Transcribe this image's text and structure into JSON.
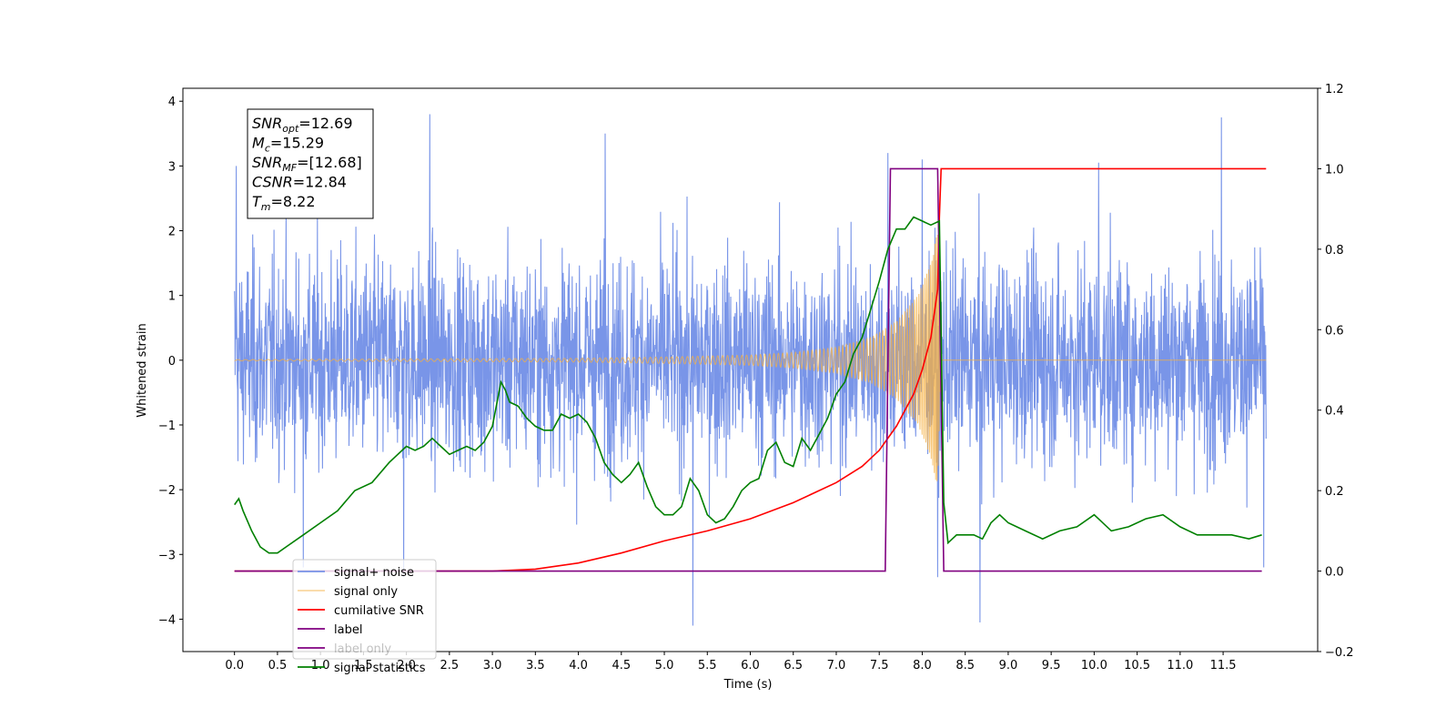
{
  "chart_data": {
    "type": "line",
    "xlabel": "Time (s)",
    "ylabel": "Whitened strain",
    "xlim": [
      -0.6,
      12.6
    ],
    "ylim": [
      -4.5,
      4.2
    ],
    "y2lim": [
      -0.2,
      1.2
    ],
    "x_ticks": [
      "0.0",
      "0.5",
      "1.0",
      "1.5",
      "2.0",
      "2.5",
      "3.0",
      "3.5",
      "4.0",
      "4.5",
      "5.0",
      "5.5",
      "6.0",
      "6.5",
      "7.0",
      "7.5",
      "8.0",
      "8.5",
      "9.0",
      "9.5",
      "10.0",
      "10.5",
      "11.0",
      "11.5"
    ],
    "y_ticks": [
      "4",
      "3",
      "2",
      "1",
      "0",
      "−1",
      "−2",
      "−3",
      "−4"
    ],
    "y2_ticks": [
      "1.2",
      "1.0",
      "0.8",
      "0.6",
      "0.4",
      "0.2",
      "0.0",
      "−0.2"
    ],
    "legend_position": "lower-left",
    "stats_box": [
      {
        "name": "SNR",
        "sub": "opt",
        "value": "=12.69"
      },
      {
        "name": "M",
        "sub": "c",
        "value": "=15.29"
      },
      {
        "name": "SNR",
        "sub": "MF",
        "value": "=[12.68]"
      },
      {
        "name": "CSNR",
        "sub": "",
        "value": "=12.84"
      },
      {
        "name": "T",
        "sub": "m",
        "value": "=8.22"
      }
    ],
    "series": [
      {
        "name": "signal+ noise",
        "color": "#6a8ae6",
        "axis": "left",
        "description_range": [
          -1.7,
          1.8
        ],
        "peaks": [
          [
            0.02,
            3.0
          ],
          [
            2.27,
            3.8
          ],
          [
            4.31,
            3.5
          ],
          [
            7.6,
            3.2
          ],
          [
            8.0,
            3.1
          ],
          [
            10.05,
            3.05
          ],
          [
            11.48,
            3.75
          ],
          [
            5.33,
            -4.1
          ],
          [
            8.67,
            -4.05
          ],
          [
            8.18,
            -3.35
          ],
          [
            0.8,
            -3.2
          ],
          [
            1.97,
            -3.35
          ],
          [
            11.97,
            -3.2
          ]
        ]
      },
      {
        "name": "signal only",
        "color": "#f5b041",
        "axis": "left",
        "envelope": [
          [
            0.0,
            0.01
          ],
          [
            4.0,
            0.03
          ],
          [
            5.0,
            0.05
          ],
          [
            6.0,
            0.08
          ],
          [
            6.5,
            0.12
          ],
          [
            7.0,
            0.2
          ],
          [
            7.4,
            0.35
          ],
          [
            7.7,
            0.6
          ],
          [
            7.95,
            1.0
          ],
          [
            8.1,
            1.5
          ],
          [
            8.18,
            2.0
          ],
          [
            8.22,
            0.0
          ],
          [
            12.0,
            0.0
          ]
        ]
      },
      {
        "name": "cumilative SNR",
        "color": "#ff0000",
        "axis": "right",
        "x": [
          0.0,
          3.0,
          3.5,
          4.0,
          4.5,
          5.0,
          5.5,
          6.0,
          6.5,
          7.0,
          7.3,
          7.5,
          7.7,
          7.9,
          8.0,
          8.1,
          8.18,
          8.2,
          8.22,
          12.0
        ],
        "y": [
          0.0,
          0.0,
          0.005,
          0.02,
          0.045,
          0.075,
          0.1,
          0.13,
          0.17,
          0.22,
          0.26,
          0.3,
          0.36,
          0.44,
          0.5,
          0.58,
          0.7,
          0.88,
          1.0,
          1.0
        ]
      },
      {
        "name": "label",
        "color": "#800080",
        "axis": "right",
        "x": [
          0.0,
          7.57,
          7.63,
          8.18,
          8.25,
          11.95
        ],
        "y": [
          0.0,
          0.0,
          1.0,
          1.0,
          0.0,
          0.0
        ]
      },
      {
        "name": "label only",
        "color": "#800080",
        "axis": "right",
        "hidden": true
      },
      {
        "name": "signal statistics",
        "color": "#008000",
        "axis": "right",
        "x": [
          0.0,
          0.05,
          0.1,
          0.2,
          0.3,
          0.4,
          0.5,
          0.6,
          0.8,
          1.0,
          1.2,
          1.4,
          1.6,
          1.8,
          2.0,
          2.1,
          2.2,
          2.3,
          2.4,
          2.5,
          2.6,
          2.7,
          2.8,
          2.9,
          3.0,
          3.1,
          3.15,
          3.2,
          3.3,
          3.4,
          3.5,
          3.6,
          3.7,
          3.8,
          3.9,
          4.0,
          4.1,
          4.2,
          4.3,
          4.4,
          4.5,
          4.6,
          4.7,
          4.8,
          4.9,
          5.0,
          5.1,
          5.2,
          5.3,
          5.4,
          5.5,
          5.6,
          5.7,
          5.8,
          5.9,
          6.0,
          6.1,
          6.2,
          6.3,
          6.4,
          6.5,
          6.6,
          6.7,
          6.8,
          6.9,
          7.0,
          7.1,
          7.2,
          7.3,
          7.4,
          7.5,
          7.6,
          7.7,
          7.8,
          7.9,
          8.0,
          8.1,
          8.2,
          8.25,
          8.3,
          8.4,
          8.5,
          8.6,
          8.7,
          8.8,
          8.9,
          9.0,
          9.2,
          9.4,
          9.6,
          9.8,
          10.0,
          10.2,
          10.4,
          10.6,
          10.8,
          11.0,
          11.2,
          11.4,
          11.6,
          11.8,
          11.95
        ],
        "y": [
          0.165,
          0.18,
          0.15,
          0.1,
          0.06,
          0.045,
          0.045,
          0.06,
          0.09,
          0.12,
          0.15,
          0.2,
          0.22,
          0.27,
          0.31,
          0.3,
          0.31,
          0.33,
          0.31,
          0.29,
          0.3,
          0.31,
          0.3,
          0.32,
          0.36,
          0.47,
          0.45,
          0.42,
          0.41,
          0.38,
          0.36,
          0.35,
          0.35,
          0.39,
          0.38,
          0.39,
          0.37,
          0.33,
          0.27,
          0.24,
          0.22,
          0.24,
          0.27,
          0.21,
          0.16,
          0.14,
          0.14,
          0.16,
          0.23,
          0.2,
          0.14,
          0.12,
          0.13,
          0.16,
          0.2,
          0.22,
          0.23,
          0.3,
          0.32,
          0.27,
          0.26,
          0.33,
          0.3,
          0.34,
          0.38,
          0.44,
          0.47,
          0.54,
          0.58,
          0.65,
          0.72,
          0.8,
          0.85,
          0.85,
          0.88,
          0.87,
          0.86,
          0.87,
          0.17,
          0.07,
          0.09,
          0.09,
          0.09,
          0.08,
          0.12,
          0.14,
          0.12,
          0.1,
          0.08,
          0.1,
          0.11,
          0.14,
          0.1,
          0.11,
          0.13,
          0.14,
          0.11,
          0.09,
          0.09,
          0.09,
          0.08,
          0.09
        ]
      }
    ]
  }
}
